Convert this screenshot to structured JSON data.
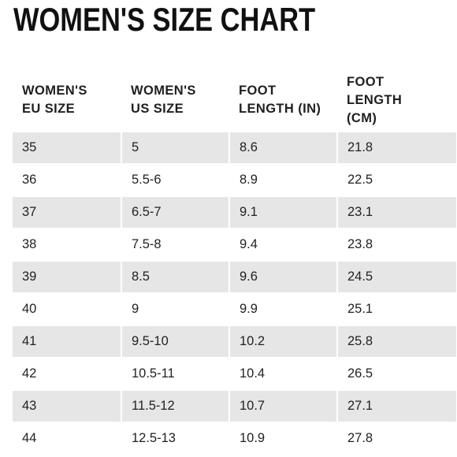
{
  "title": "WOMEN'S SIZE CHART",
  "columns": [
    "WOMEN'S\nEU SIZE",
    "WOMEN'S\nUS SIZE",
    "FOOT\nLENGTH (IN)",
    "FOOT\nLENGTH\n(CM)"
  ],
  "rows": [
    [
      "35",
      "5",
      "8.6",
      "21.8"
    ],
    [
      "36",
      "5.5-6",
      "8.9",
      "22.5"
    ],
    [
      "37",
      "6.5-7",
      "9.1",
      "23.1"
    ],
    [
      "38",
      "7.5-8",
      "9.4",
      "23.8"
    ],
    [
      "39",
      "8.5",
      "9.6",
      "24.5"
    ],
    [
      "40",
      "9",
      "9.9",
      "25.1"
    ],
    [
      "41",
      "9.5-10",
      "10.2",
      "25.8"
    ],
    [
      "42",
      "10.5-11",
      "10.4",
      "26.5"
    ],
    [
      "43",
      "11.5-12",
      "10.7",
      "27.1"
    ],
    [
      "44",
      "12.5-13",
      "10.9",
      "27.8"
    ]
  ],
  "colors": {
    "shaded_row": "#e6e6e6",
    "plain_row": "#ffffff"
  }
}
